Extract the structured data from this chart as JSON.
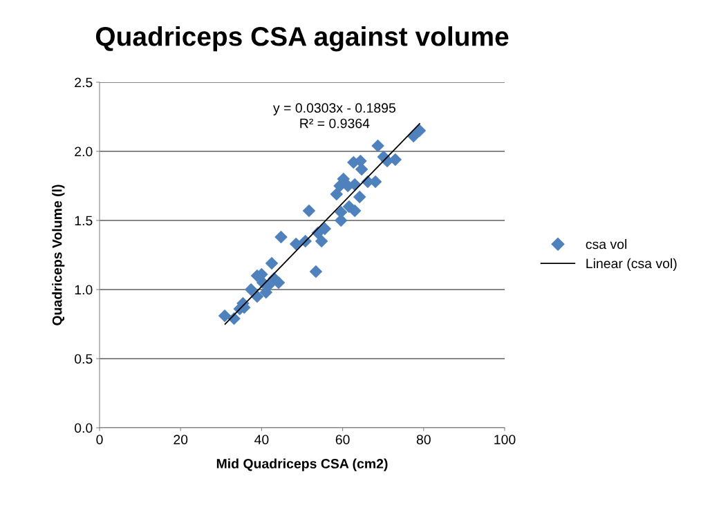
{
  "chart_data": {
    "type": "scatter",
    "title": "Quadriceps CSA against volume",
    "xlabel": "Mid Quadriceps CSA (cm2)",
    "ylabel": "Quadriceps Volume (l)",
    "xlim": [
      0,
      100
    ],
    "xticks": [
      0,
      20,
      40,
      60,
      80,
      100
    ],
    "ylim": [
      0,
      2.5
    ],
    "yticks": [
      {
        "value": 0,
        "label": "0.0"
      },
      {
        "value": 0.5,
        "label": "0.5"
      },
      {
        "value": 1,
        "label": "1.0"
      },
      {
        "value": 1.5,
        "label": "1.5"
      },
      {
        "value": 2,
        "label": "2.0"
      },
      {
        "value": 2.5,
        "label": "2.5"
      }
    ],
    "grid": "y",
    "legend": "right",
    "annotations": [
      "y = 0.0303x - 0.1895",
      "R² = 0.9364"
    ],
    "series": [
      {
        "name": "csa vol",
        "marker": "diamond",
        "color": "#4f81bd",
        "x": [
          30.9,
          33.2,
          34.6,
          35.4,
          35.7,
          37.4,
          38.9,
          38.9,
          40.0,
          41.1,
          41.7,
          42.5,
          43.1,
          44.2,
          40.3,
          44.8,
          48.5,
          50.8,
          51.7,
          53.4,
          53.9,
          55.6,
          54.8,
          59.6,
          59.6,
          61.6,
          63.0,
          58.5,
          59.3,
          60.2,
          61.3,
          63.0,
          64.2,
          66.2,
          68.1,
          62.7,
          64.4,
          64.7,
          68.7,
          70.1,
          71.0,
          73.0,
          77.5,
          79.0
        ],
        "values": [
          0.81,
          0.79,
          0.86,
          0.9,
          0.87,
          1.0,
          0.95,
          1.1,
          1.11,
          0.98,
          1.03,
          1.19,
          1.08,
          1.05,
          1.05,
          1.38,
          1.33,
          1.35,
          1.57,
          1.13,
          1.41,
          1.44,
          1.35,
          1.5,
          1.56,
          1.6,
          1.57,
          1.69,
          1.75,
          1.8,
          1.75,
          1.76,
          1.67,
          1.78,
          1.78,
          1.92,
          1.93,
          1.87,
          2.04,
          1.96,
          1.93,
          1.94,
          2.11,
          2.15
        ]
      },
      {
        "name": "Linear (csa vol)",
        "type": "line",
        "color": "#000000",
        "x": [
          31,
          79
        ],
        "values": [
          0.75,
          2.2
        ]
      }
    ]
  }
}
